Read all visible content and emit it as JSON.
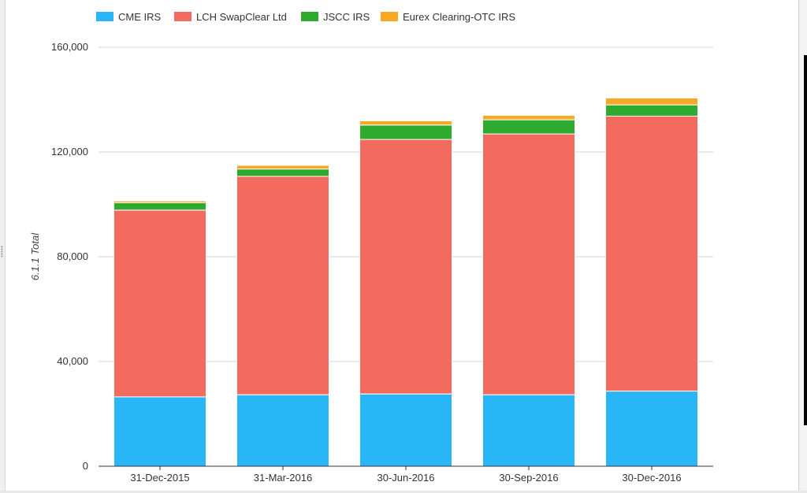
{
  "chart_data": {
    "type": "bar",
    "stacked": true,
    "categories": [
      "31-Dec-2015",
      "31-Mar-2016",
      "30-Jun-2016",
      "30-Sep-2016",
      "30-Dec-2016"
    ],
    "series": [
      {
        "name": "CME IRS",
        "color": "#29b6f6",
        "values": [
          26500,
          27300,
          27600,
          27300,
          28700
        ]
      },
      {
        "name": "LCH SwapClear Ltd",
        "color": "#f26b5e",
        "values": [
          71300,
          83400,
          97200,
          99600,
          105000
        ]
      },
      {
        "name": "JSCC IRS",
        "color": "#2eaa2e",
        "values": [
          2800,
          2800,
          5500,
          5400,
          4300
        ]
      },
      {
        "name": "Eurex Clearing-OTC IRS",
        "color": "#f9a825",
        "values": [
          700,
          1400,
          1600,
          1700,
          2600
        ]
      }
    ],
    "ylabel": "6.1.1 Total",
    "ylim": [
      0,
      160000
    ],
    "yticks": [
      0,
      40000,
      80000,
      120000,
      160000
    ],
    "ytick_labels": [
      "0",
      "40,000",
      "80,000",
      "120,000",
      "160,000"
    ],
    "grid": true,
    "legend": "top-left"
  }
}
